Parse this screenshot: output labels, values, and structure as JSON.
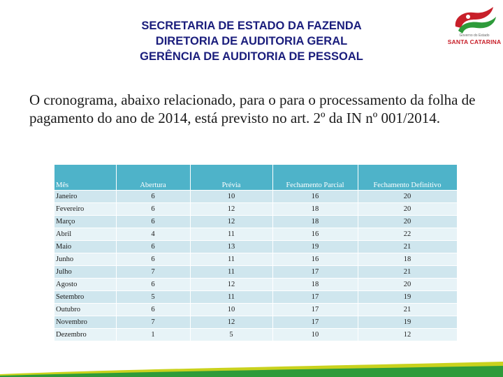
{
  "header": {
    "line1": "SECRETARIA DE ESTADO DA FAZENDA",
    "line2": "DIRETORIA DE AUDITORIA GERAL",
    "line3": "GERÊNCIA DE AUDITORIA DE PESSOAL"
  },
  "logo": {
    "subtitle": "Governo do Estado",
    "name": "SANTA CATARINA"
  },
  "intro": "O cronograma, abaixo relacionado, para o para o processamento da folha de pagamento do ano de 2014, está previsto no art. 2º da IN nº 001/2014.",
  "table": {
    "columns": [
      "Mês",
      "Abertura",
      "Prévia",
      "Fechamento Parcial",
      "Fechamento Definitivo"
    ],
    "rows": [
      [
        "Janeiro",
        "6",
        "10",
        "16",
        "20"
      ],
      [
        "Fevereiro",
        "6",
        "12",
        "18",
        "20"
      ],
      [
        "Março",
        "6",
        "12",
        "18",
        "20"
      ],
      [
        "Abril",
        "4",
        "11",
        "16",
        "22"
      ],
      [
        "Maio",
        "6",
        "13",
        "19",
        "21"
      ],
      [
        "Junho",
        "6",
        "11",
        "16",
        "18"
      ],
      [
        "Julho",
        "7",
        "11",
        "17",
        "21"
      ],
      [
        "Agosto",
        "6",
        "12",
        "18",
        "20"
      ],
      [
        "Setembro",
        "5",
        "11",
        "17",
        "19"
      ],
      [
        "Outubro",
        "6",
        "10",
        "17",
        "21"
      ],
      [
        "Novembro",
        "7",
        "12",
        "17",
        "19"
      ],
      [
        "Dezembro",
        "1",
        "5",
        "10",
        "12"
      ]
    ]
  },
  "colors": {
    "header_text": "#1a1d7c",
    "table_header": "#4eb3c9",
    "row_dark": "#cfe6ee",
    "row_light": "#e7f3f7",
    "band_green": "#2e9b3a",
    "band_yellow": "#c9d21d",
    "logo_red": "#c8202a"
  }
}
